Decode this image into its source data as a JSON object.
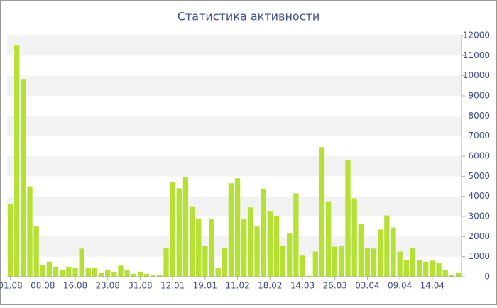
{
  "chart_data": {
    "type": "bar",
    "title": "Статистика активности",
    "categories": [
      "01.08",
      null,
      null,
      null,
      null,
      "08.08",
      null,
      null,
      null,
      null,
      "16.08",
      null,
      null,
      null,
      null,
      "23.08",
      null,
      null,
      null,
      null,
      "31.08",
      null,
      null,
      null,
      null,
      "12.01",
      null,
      null,
      null,
      null,
      "19.01",
      null,
      null,
      null,
      null,
      "11.02",
      null,
      null,
      null,
      null,
      "18.02",
      null,
      null,
      null,
      null,
      "14.03",
      null,
      null,
      null,
      null,
      "26.03",
      null,
      null,
      null,
      null,
      "03.04",
      null,
      null,
      null,
      null,
      "09.04",
      null,
      null,
      null,
      null,
      "14.04",
      null,
      null,
      null,
      null
    ],
    "values": [
      3600,
      11500,
      9800,
      4500,
      2500,
      600,
      750,
      500,
      350,
      500,
      450,
      1400,
      450,
      450,
      200,
      350,
      250,
      550,
      350,
      150,
      250,
      150,
      100,
      100,
      1450,
      4700,
      4400,
      4950,
      3500,
      2900,
      1550,
      2900,
      450,
      1450,
      4650,
      4900,
      2900,
      3450,
      2500,
      4350,
      3250,
      3000,
      1550,
      2150,
      4150,
      1050,
      50,
      1250,
      6450,
      3750,
      1500,
      1550,
      5800,
      3900,
      2650,
      1450,
      1400,
      2350,
      3050,
      2450,
      1250,
      850,
      1450,
      850,
      750,
      800,
      700,
      350,
      100,
      200
    ],
    "color": "#b5e133",
    "ylim": [
      0,
      12000
    ],
    "yticks": [
      0,
      1000,
      2000,
      3000,
      4000,
      5000,
      6000,
      7000,
      8000,
      9000,
      10000,
      11000,
      12000
    ],
    "grid": true
  }
}
